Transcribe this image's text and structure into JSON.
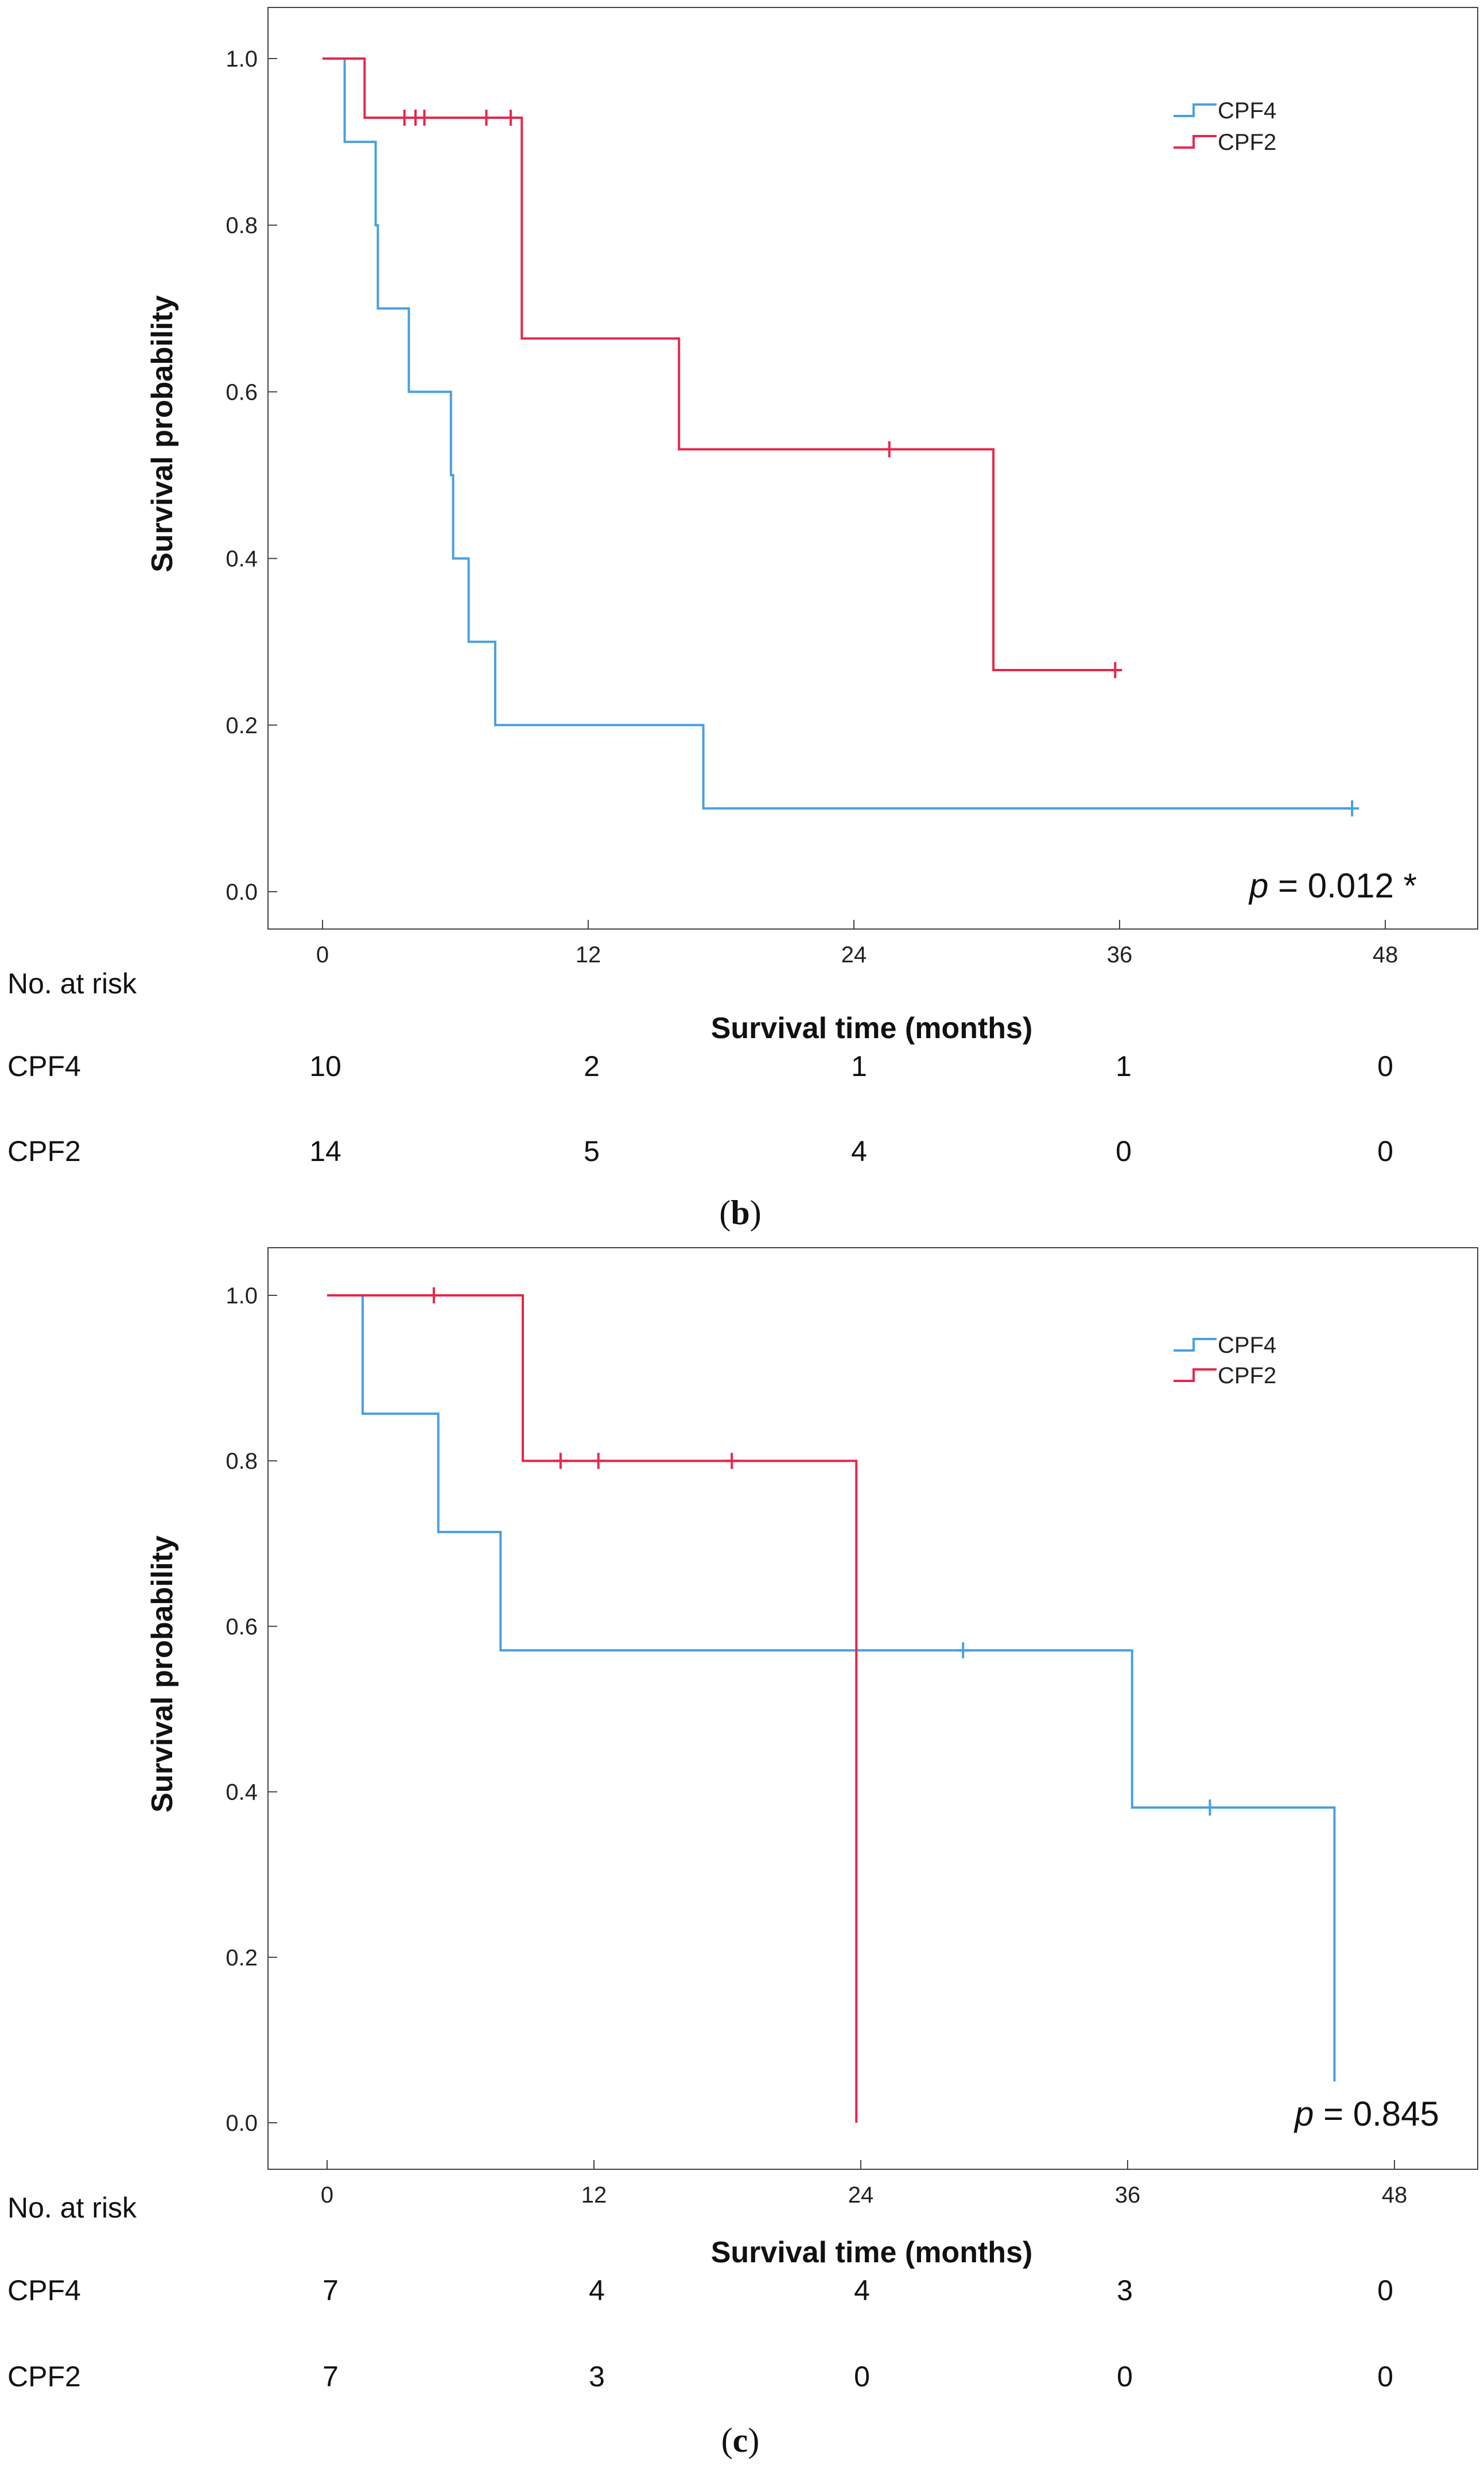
{
  "chart_data": [
    {
      "type": "line",
      "subtype": "kaplan-meier",
      "caption_letter": "b",
      "xlabel": "Survival time (months)",
      "ylabel": "Survival probability",
      "xticks": [
        "0",
        "12",
        "24",
        "36",
        "48"
      ],
      "yticks": [
        "0.0",
        "0.2",
        "0.4",
        "0.6",
        "0.8",
        "1.0"
      ],
      "xlim": [
        -2.5,
        52
      ],
      "ylim": [
        -0.02,
        1.05
      ],
      "legend": {
        "position": "top-right"
      },
      "p_label": "p",
      "p_value_text": "= 0.012 *",
      "series": [
        {
          "name": "CPF4",
          "color": "#4a9fe0",
          "steps": [
            [
              0,
              1.0
            ],
            [
              1.0,
              0.9
            ],
            [
              2.4,
              0.8
            ],
            [
              2.5,
              0.7
            ],
            [
              3.9,
              0.6
            ],
            [
              5.8,
              0.5
            ],
            [
              5.9,
              0.4
            ],
            [
              6.6,
              0.3
            ],
            [
              7.8,
              0.2
            ],
            [
              17.2,
              0.1
            ],
            [
              46.5,
              0.1
            ]
          ],
          "censored": [
            [
              46.5,
              0.1
            ]
          ]
        },
        {
          "name": "CPF2",
          "color": "#e8264a",
          "steps": [
            [
              0,
              1.0
            ],
            [
              1.9,
              0.929
            ],
            [
              9.0,
              0.664
            ],
            [
              16.1,
              0.531
            ],
            [
              30.3,
              0.266
            ],
            [
              35.8,
              0.266
            ]
          ],
          "censored": [
            [
              3.7,
              0.929
            ],
            [
              4.2,
              0.929
            ],
            [
              4.6,
              0.929
            ],
            [
              7.4,
              0.929
            ],
            [
              8.5,
              0.929
            ],
            [
              25.6,
              0.531
            ],
            [
              35.8,
              0.266
            ]
          ]
        }
      ],
      "risk_table": {
        "title": "No. at risk",
        "rows": [
          {
            "name": "CPF4",
            "counts": [
              "10",
              "2",
              "1",
              "1",
              "0"
            ]
          },
          {
            "name": "CPF2",
            "counts": [
              "14",
              "5",
              "4",
              "0",
              "0"
            ]
          }
        ]
      }
    },
    {
      "type": "line",
      "subtype": "kaplan-meier",
      "caption_letter": "c",
      "xlabel": "Survival time (months)",
      "ylabel": "Survival probability",
      "xticks": [
        "0",
        "12",
        "24",
        "36",
        "48"
      ],
      "yticks": [
        "0.0",
        "0.2",
        "0.4",
        "0.6",
        "0.8",
        "1.0"
      ],
      "xlim": [
        -2.5,
        52
      ],
      "ylim": [
        -0.05,
        1.05
      ],
      "legend": {
        "position": "top-right"
      },
      "p_label": "p",
      "p_value_text": "= 0.845",
      "series": [
        {
          "name": "CPF4",
          "color": "#4a9fe0",
          "steps": [
            [
              0,
              1.0
            ],
            [
              1.6,
              0.857
            ],
            [
              5.0,
              0.714
            ],
            [
              7.8,
              0.571
            ],
            [
              36.2,
              0.381
            ],
            [
              45.3,
              0.05
            ]
          ],
          "censored": [
            [
              28.6,
              0.571
            ],
            [
              39.7,
              0.381
            ]
          ]
        },
        {
          "name": "CPF2",
          "color": "#e8264a",
          "steps": [
            [
              0,
              1.0
            ],
            [
              8.8,
              0.8
            ],
            [
              23.8,
              0.0
            ]
          ],
          "censored": [
            [
              4.8,
              1.0
            ],
            [
              10.5,
              0.8
            ],
            [
              12.2,
              0.8
            ],
            [
              18.2,
              0.8
            ]
          ]
        }
      ],
      "risk_table": {
        "title": "No. at risk",
        "rows": [
          {
            "name": "CPF4",
            "counts": [
              "7",
              "4",
              "4",
              "3",
              "0"
            ]
          },
          {
            "name": "CPF2",
            "counts": [
              "7",
              "3",
              "0",
              "0",
              "0"
            ]
          }
        ]
      }
    }
  ]
}
